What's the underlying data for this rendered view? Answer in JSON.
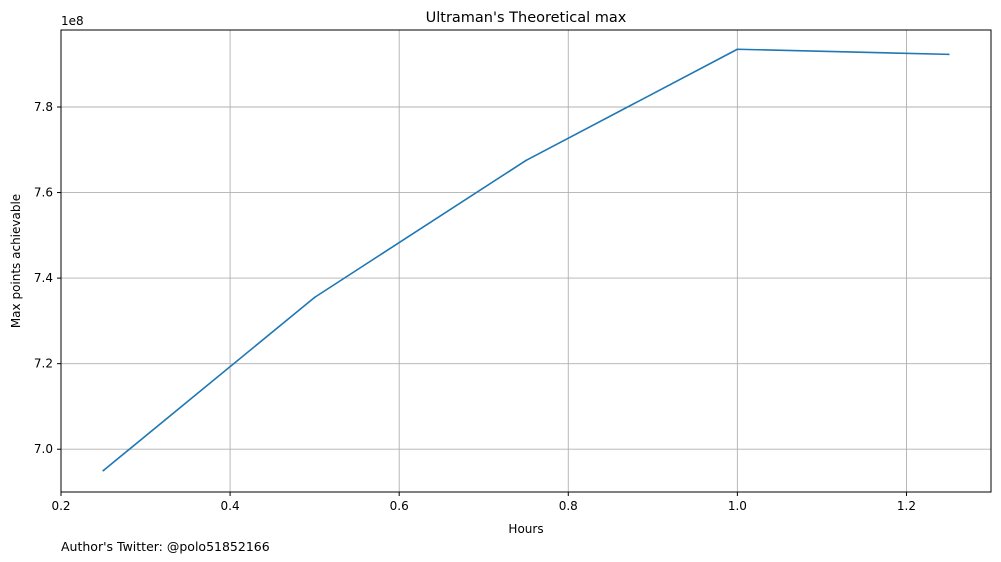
{
  "chart_data": {
    "type": "line",
    "title": "Ultraman's Theoretical max",
    "xlabel": "Hours",
    "ylabel": "Max points achievable",
    "y_offset_label": "1e8",
    "xlim": [
      0.2,
      1.3
    ],
    "ylim": [
      6.9,
      7.98
    ],
    "x_ticks": [
      0.2,
      0.4,
      0.6,
      0.8,
      1.0,
      1.2
    ],
    "x_tick_labels": [
      "0.2",
      "0.4",
      "0.6",
      "0.8",
      "1.0",
      "1.2"
    ],
    "y_ticks": [
      7.0,
      7.2,
      7.4,
      7.6,
      7.8
    ],
    "y_tick_labels": [
      "7.0",
      "7.2",
      "7.4",
      "7.6",
      "7.8"
    ],
    "grid": true,
    "series": [
      {
        "color": "#1f77b4",
        "x": [
          0.25,
          0.5,
          0.75,
          1.0,
          1.25
        ],
        "y": [
          6.95,
          7.355,
          7.675,
          7.935,
          7.923
        ]
      }
    ],
    "footnote": "Author's Twitter: @polo51852166"
  }
}
